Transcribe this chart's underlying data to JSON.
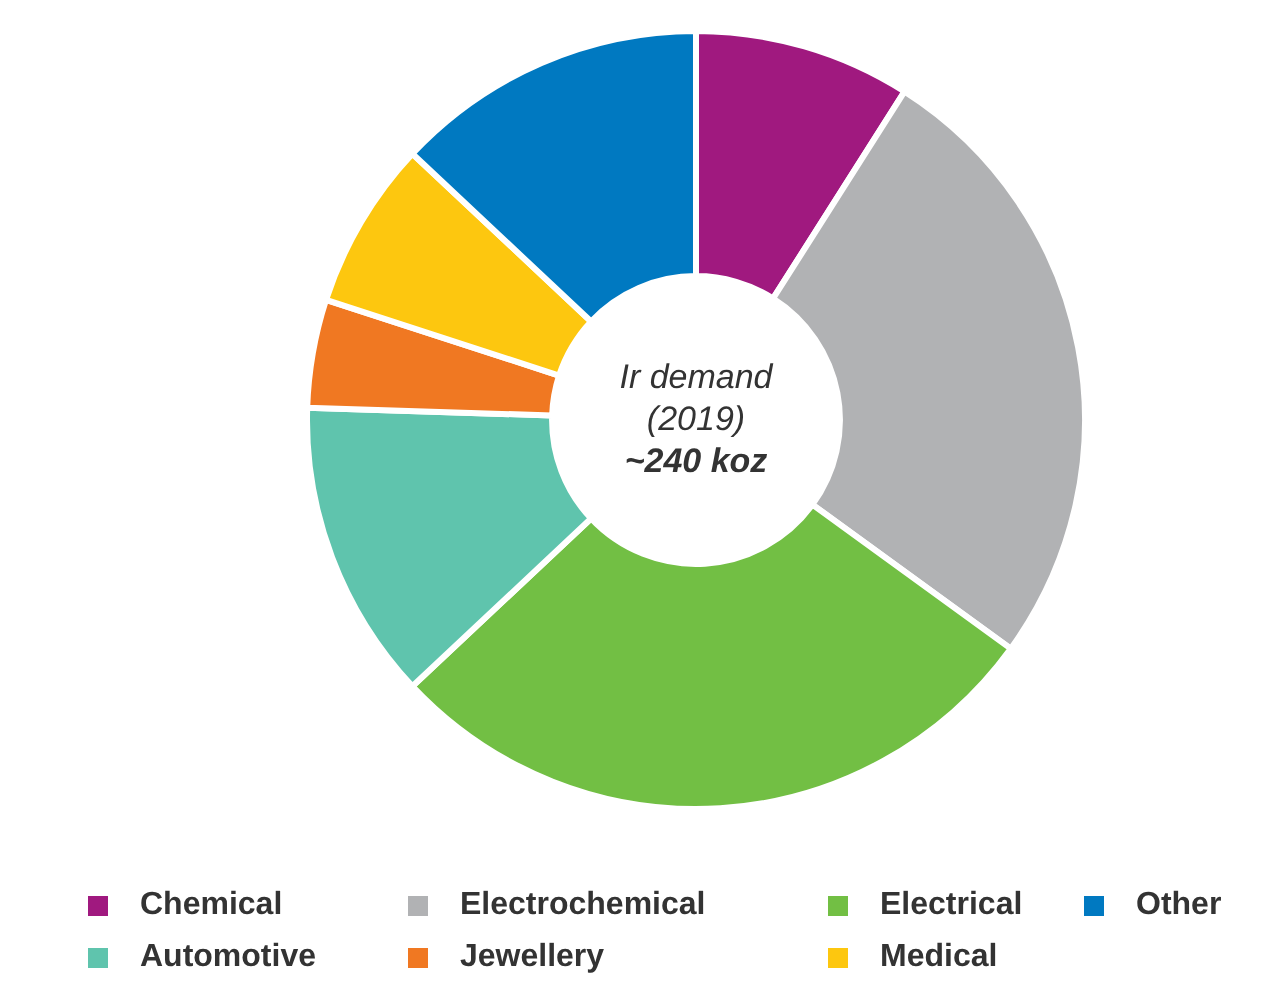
{
  "chart_data": {
    "type": "donut",
    "categories": [
      "Chemical",
      "Electrochemical",
      "Electrical",
      "Automotive",
      "Jewellery",
      "Medical",
      "Other"
    ],
    "values": [
      9,
      26,
      28,
      12.5,
      4.5,
      7,
      13
    ],
    "colors": [
      "#a0197f",
      "#b1b2b4",
      "#72bf44",
      "#5fc4ad",
      "#f07822",
      "#fdc70f",
      "#0079c1"
    ],
    "annotations": [
      "Ir demand",
      "(2019)",
      "~240 koz"
    ],
    "legend": "bottom"
  }
}
